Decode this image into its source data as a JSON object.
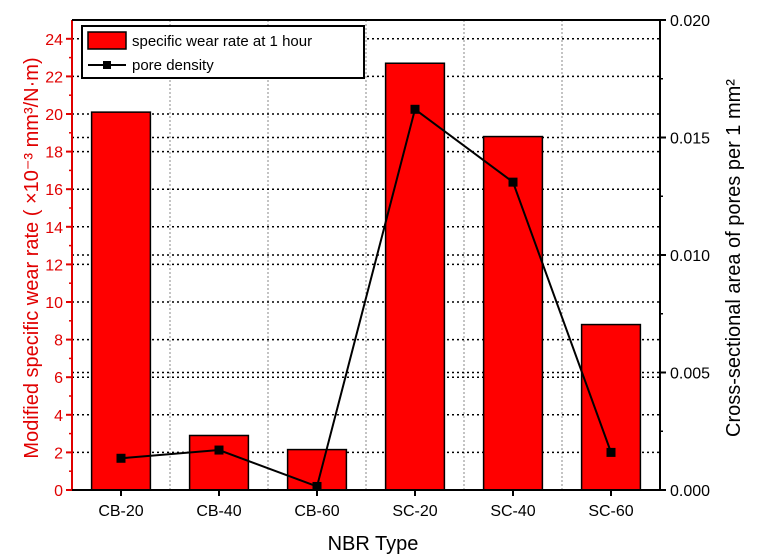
{
  "chart_data": {
    "type": "bar",
    "categories": [
      "CB-20",
      "CB-40",
      "CB-60",
      "SC-20",
      "SC-40",
      "SC-60"
    ],
    "series": [
      {
        "name": "specific wear rate at 1 hour",
        "kind": "bar",
        "axis": "left",
        "values": [
          20.1,
          2.9,
          2.15,
          22.7,
          18.8,
          8.8
        ],
        "color": "#ff0000"
      },
      {
        "name": "pore density",
        "kind": "line",
        "axis": "right",
        "values": [
          0.00135,
          0.0017,
          0.00015,
          0.0162,
          0.0131,
          0.0016
        ],
        "color": "#000000",
        "marker": "square"
      }
    ],
    "xlabel": "NBR Type",
    "ylabel_left": "Modified specific wear rate ( ×10⁻³ mm³/N·m)",
    "ylabel_right": "Cross-sectional area of pores per 1 mm²",
    "ylim_left": [
      0,
      25
    ],
    "ylim_right": [
      0,
      0.02
    ],
    "yticks_left": [
      "0",
      "2",
      "4",
      "6",
      "8",
      "10",
      "12",
      "14",
      "16",
      "18",
      "20",
      "22",
      "24"
    ],
    "yticks_right": [
      "0.000",
      "0.005",
      "0.010",
      "0.015",
      "0.020"
    ],
    "legend_position": "top-left",
    "grid": "dotted horizontal and vertical",
    "left_axis_color": "#e00000",
    "right_axis_color": "#000000"
  }
}
